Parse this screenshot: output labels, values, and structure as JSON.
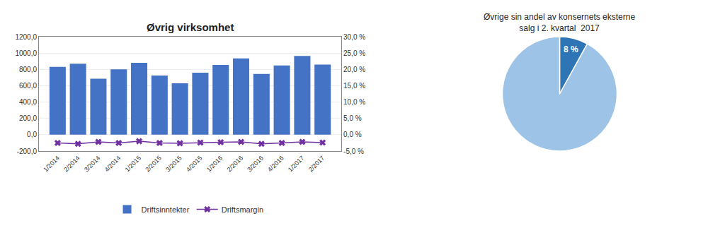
{
  "chart_data": [
    {
      "type": "bar",
      "title": "Øvrig virksomhet",
      "categories": [
        "1/2014",
        "2/2014",
        "3/2014",
        "4/2014",
        "1/2015",
        "2/2015",
        "3/2015",
        "4/2015",
        "1/2016",
        "2/2016",
        "3/2016",
        "4/2016",
        "1/2017",
        "2/2017"
      ],
      "series": [
        {
          "name": "Driftsinntekter",
          "type": "bar",
          "color": "#4472C4",
          "values": [
            830,
            870,
            685,
            800,
            880,
            725,
            630,
            760,
            855,
            935,
            745,
            848,
            965,
            858
          ]
        },
        {
          "name": "Driftsmargin",
          "type": "line",
          "color": "#7030A0",
          "marker": "x",
          "axis": "y2",
          "values": [
            -2.5,
            -2.8,
            -2.2,
            -2.5,
            -2.0,
            -2.5,
            -2.6,
            -2.4,
            -2.3,
            -2.2,
            -2.8,
            -2.5,
            -2.2,
            -2.4
          ]
        }
      ],
      "ylim": [
        -200,
        1200
      ],
      "yticks": [
        {
          "value": -200,
          "label": "-200,0"
        },
        {
          "value": 0,
          "label": "0,0"
        },
        {
          "value": 200,
          "label": "200,0"
        },
        {
          "value": 400,
          "label": "400,0"
        },
        {
          "value": 600,
          "label": "600,0"
        },
        {
          "value": 800,
          "label": "800,0"
        },
        {
          "value": 1000,
          "label": "1000,0"
        },
        {
          "value": 1200,
          "label": "1200,0"
        }
      ],
      "y2lim": [
        -5.0,
        30.0
      ],
      "y2ticks": [
        {
          "value": -5.0,
          "label": "-5,0 %"
        },
        {
          "value": 0.0,
          "label": "0,0 %"
        },
        {
          "value": 5.0,
          "label": "5,0 %"
        },
        {
          "value": 10.0,
          "label": "10,0 %"
        },
        {
          "value": 15.0,
          "label": "15,0 %"
        },
        {
          "value": 20.0,
          "label": "20,0 %"
        },
        {
          "value": 25.0,
          "label": "25,0 %"
        },
        {
          "value": 30.0,
          "label": "30,0 %"
        }
      ],
      "grid": true,
      "legend": "bottom"
    },
    {
      "type": "pie",
      "title": "Øvrige sin andel av konsernets eksterne\nsalg i 2. kvartal  2017",
      "values": [
        8,
        92
      ],
      "value_labels": [
        "8 %",
        null
      ],
      "colors": [
        "#2E75B6",
        "#9DC3E6"
      ]
    }
  ]
}
